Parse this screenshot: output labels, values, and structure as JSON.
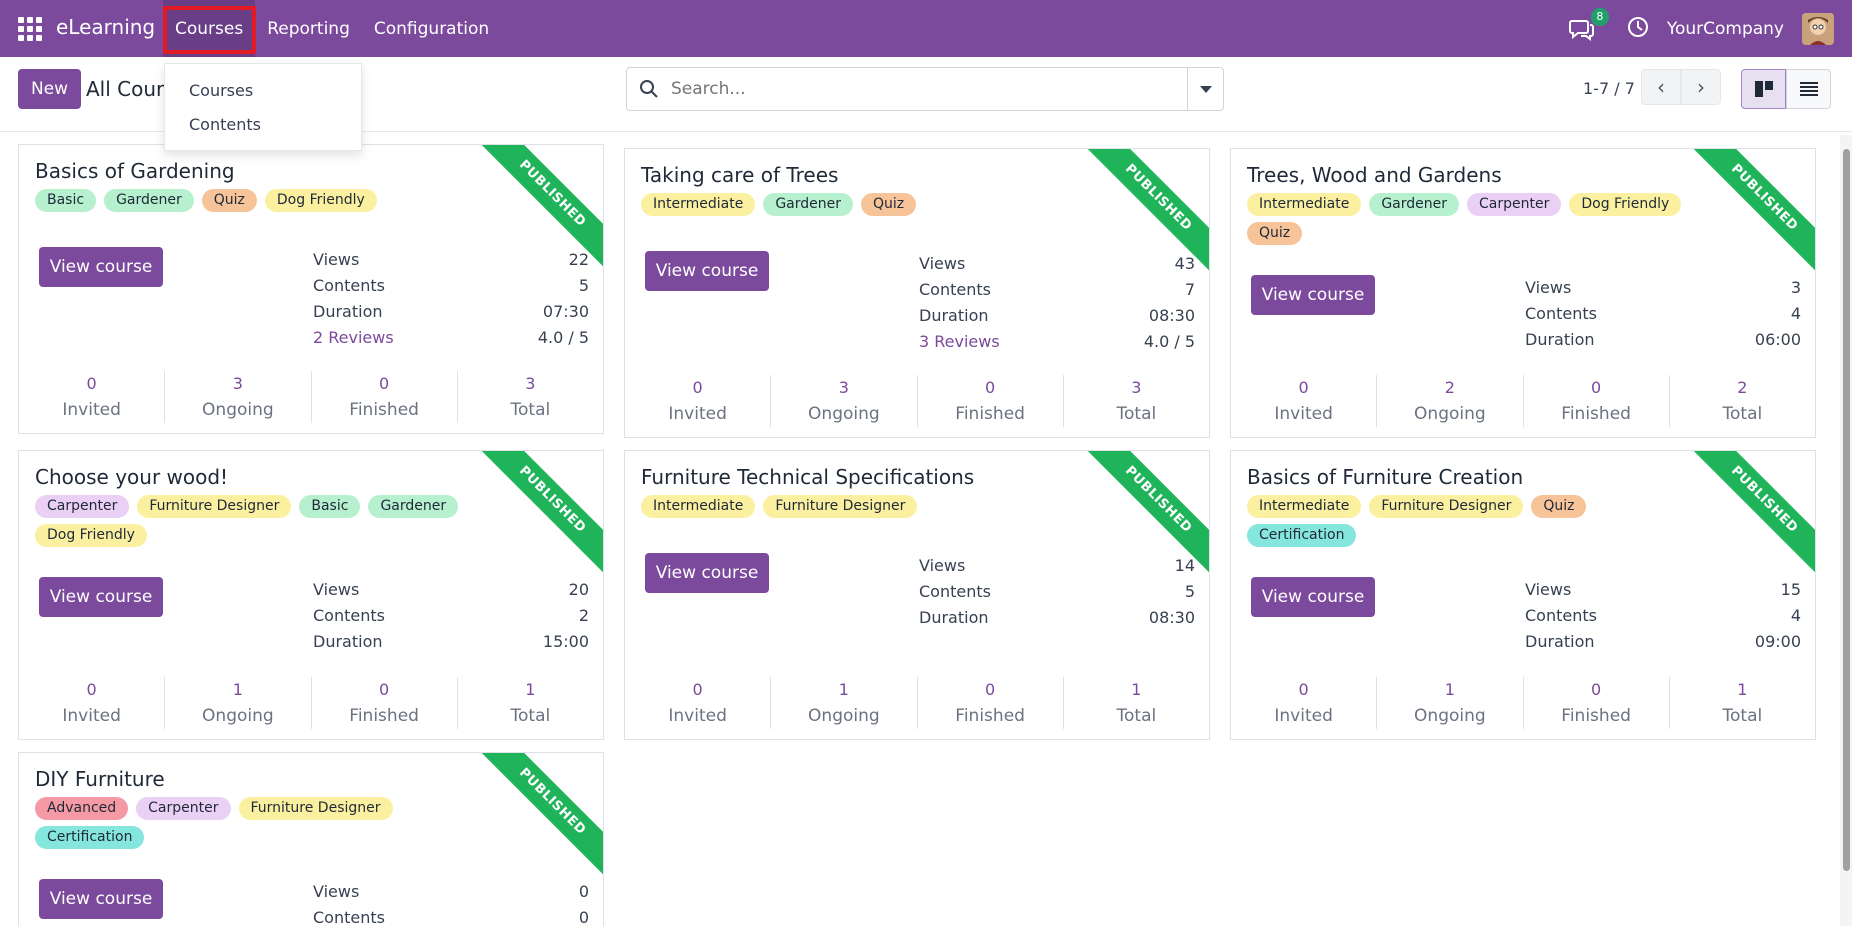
{
  "navbar": {
    "brand": "eLearning",
    "menu": [
      "Courses",
      "Reporting",
      "Configuration"
    ],
    "chat_badge": "8",
    "company": "YourCompany"
  },
  "control": {
    "new_label": "New",
    "breadcrumb": "All Cours",
    "search_placeholder": "Search...",
    "pager": "1-7 / 7"
  },
  "dropdown": {
    "items": [
      "Courses",
      "Contents"
    ]
  },
  "colors": {
    "brand": "#7c4a9c",
    "published_ribbon": "#1fb35a",
    "highlight": "#e01b24"
  },
  "ribbon_label": "PUBLISHED",
  "view_course_label": "View course",
  "labels": {
    "views": "Views",
    "contents": "Contents",
    "duration": "Duration",
    "invited": "Invited",
    "ongoing": "Ongoing",
    "finished": "Finished",
    "total": "Total"
  },
  "courses": [
    {
      "title": "Basics of Gardening",
      "tags": [
        [
          "Basic",
          "#b6f0cf"
        ],
        [
          "Gardener",
          "#b6f0cf"
        ],
        [
          "Quiz",
          "#f7c49a"
        ],
        [
          "Dog Friendly",
          "#fbf0a0"
        ]
      ],
      "views": "22",
      "contents": "5",
      "duration": "07:30",
      "reviews": "2 Reviews",
      "rating": "4.0 / 5",
      "invited": "0",
      "ongoing": "3",
      "finished": "0",
      "total": "3"
    },
    {
      "title": "Taking care of Trees",
      "tags": [
        [
          "Intermediate",
          "#fbf0a0"
        ],
        [
          "Gardener",
          "#b6f0cf"
        ],
        [
          "Quiz",
          "#f7c49a"
        ]
      ],
      "views": "43",
      "contents": "7",
      "duration": "08:30",
      "reviews": "3 Reviews",
      "rating": "4.0 / 5",
      "invited": "0",
      "ongoing": "3",
      "finished": "0",
      "total": "3"
    },
    {
      "title": "Trees, Wood and Gardens",
      "tags": [
        [
          "Intermediate",
          "#fbf0a0"
        ],
        [
          "Gardener",
          "#b6f0cf"
        ],
        [
          "Carpenter",
          "#ebd0f5"
        ],
        [
          "Dog Friendly",
          "#fbf0a0"
        ],
        [
          "Quiz",
          "#f7c49a"
        ]
      ],
      "views": "3",
      "contents": "4",
      "duration": "06:00",
      "reviews": "",
      "rating": "",
      "invited": "0",
      "ongoing": "2",
      "finished": "0",
      "total": "2"
    },
    {
      "title": "Choose your wood!",
      "tags": [
        [
          "Carpenter",
          "#ebd0f5"
        ],
        [
          "Furniture Designer",
          "#fbf0a0"
        ],
        [
          "Basic",
          "#b6f0cf"
        ],
        [
          "Gardener",
          "#b6f0cf"
        ],
        [
          "Dog Friendly",
          "#fbf0a0"
        ]
      ],
      "views": "20",
      "contents": "2",
      "duration": "15:00",
      "reviews": "",
      "rating": "",
      "invited": "0",
      "ongoing": "1",
      "finished": "0",
      "total": "1"
    },
    {
      "title": "Furniture Technical Specifications",
      "tags": [
        [
          "Intermediate",
          "#fbf0a0"
        ],
        [
          "Furniture Designer",
          "#fbf0a0"
        ]
      ],
      "views": "14",
      "contents": "5",
      "duration": "08:30",
      "reviews": "",
      "rating": "",
      "invited": "0",
      "ongoing": "1",
      "finished": "0",
      "total": "1"
    },
    {
      "title": "Basics of Furniture Creation",
      "tags": [
        [
          "Intermediate",
          "#fbf0a0"
        ],
        [
          "Furniture Designer",
          "#fbf0a0"
        ],
        [
          "Quiz",
          "#f7c49a"
        ],
        [
          "Certification",
          "#84e6dc"
        ]
      ],
      "views": "15",
      "contents": "4",
      "duration": "09:00",
      "reviews": "",
      "rating": "",
      "invited": "0",
      "ongoing": "1",
      "finished": "0",
      "total": "1"
    },
    {
      "title": "DIY Furniture",
      "tags": [
        [
          "Advanced",
          "#f59aa5"
        ],
        [
          "Carpenter",
          "#ebd0f5"
        ],
        [
          "Furniture Designer",
          "#fbf0a0"
        ],
        [
          "Certification",
          "#84e6dc"
        ]
      ],
      "views": "0",
      "contents": "0",
      "duration": "",
      "reviews": "",
      "rating": "",
      "invited": "",
      "ongoing": "",
      "finished": "",
      "total": ""
    }
  ]
}
